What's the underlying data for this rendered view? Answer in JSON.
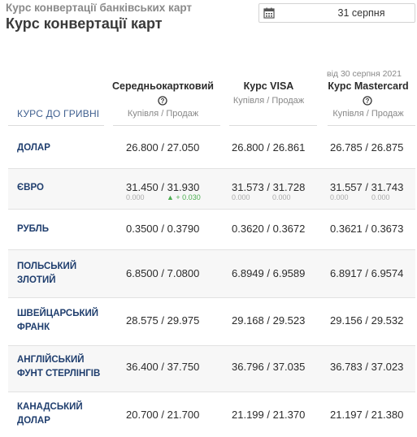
{
  "page": {
    "sup_title": "Курс конвертації банківських карт",
    "title": "Курс конвертації карт"
  },
  "date_picker": {
    "value": "31 серпня",
    "icon": "calendar-icon"
  },
  "table": {
    "row_header_label": "КУРС ДО ГРИВНІ",
    "mastercard_date_note": "від 30 серпня 2021",
    "columns": [
      {
        "name": "Середньокартковий",
        "sub": "Купівля / Продаж",
        "help_icon": true
      },
      {
        "name": "Курс VISA",
        "sub": "Купівля / Продаж",
        "help_icon": false
      },
      {
        "name": "Курс Mastercard",
        "sub": "Купівля / Продаж",
        "help_icon": true
      }
    ],
    "rows": [
      {
        "currency": "ДОЛАР",
        "avg": "26.800 / 27.050",
        "visa": "26.800 / 26.861",
        "mc": "26.785 / 26.875"
      },
      {
        "currency": "ЄВРО",
        "avg": "31.450 / 31.930",
        "avg_d1": "0.000",
        "avg_d2": "+ 0.030",
        "visa": "31.573 / 31.728",
        "visa_d1": "0.000",
        "visa_d2": "0.000",
        "mc": "31.557 / 31.743",
        "mc_d1": "0.000",
        "mc_d2": "0.000"
      },
      {
        "currency": "РУБЛЬ",
        "avg": "0.3500 / 0.3790",
        "visa": "0.3620 / 0.3672",
        "mc": "0.3621 / 0.3673"
      },
      {
        "currency_l1": "ПОЛЬСЬКИЙ",
        "currency_l2": "ЗЛОТИЙ",
        "avg": "6.8500 / 7.0800",
        "visa": "6.8949 / 6.9589",
        "mc": "6.8917 / 6.9574"
      },
      {
        "currency_l1": "ШВЕЙЦАРСЬКИЙ",
        "currency_l2": "ФРАНК",
        "avg": "28.575 / 29.975",
        "visa": "29.168 / 29.523",
        "mc": "29.156 / 29.532"
      },
      {
        "currency_l1": "АНГЛІЙСЬКИЙ",
        "currency_l2": "ФУНТ СТЕРЛІНГІВ",
        "avg": "36.400 / 37.750",
        "visa": "36.796 / 37.035",
        "mc": "36.783 / 37.023"
      },
      {
        "currency_l1": "КАНАДСЬКИЙ",
        "currency_l2": "ДОЛАР",
        "avg": "20.700 / 21.700",
        "visa": "21.199 / 21.370",
        "mc": "21.197 / 21.380"
      }
    ]
  },
  "colors": {
    "currency_text": "#1f3e6e",
    "delta_up": "#4caf50",
    "header_label": "#3f5f8f"
  }
}
